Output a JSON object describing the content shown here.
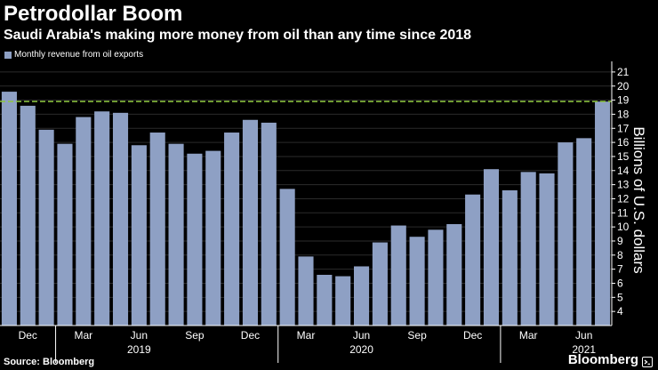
{
  "chart_data": {
    "type": "bar",
    "title": "Petrodollar Boom",
    "subtitle": "Saudi Arabia's making more money from oil than any time since 2018",
    "series": [
      {
        "name": "Monthly revenue from oil exports",
        "values": [
          19.6,
          18.6,
          16.9,
          15.9,
          17.8,
          18.2,
          18.1,
          15.8,
          16.7,
          15.9,
          15.2,
          15.4,
          16.7,
          17.6,
          17.4,
          12.7,
          7.9,
          6.6,
          6.5,
          7.2,
          8.9,
          10.1,
          9.3,
          9.8,
          10.2,
          12.3,
          14.1,
          12.6,
          13.9,
          13.8,
          16.0,
          16.3,
          18.9
        ]
      }
    ],
    "reference_line": 18.9,
    "x_tick_labels": [
      {
        "index": 1,
        "label": "Dec"
      },
      {
        "index": 4,
        "label": "Mar"
      },
      {
        "index": 7,
        "label": "Jun"
      },
      {
        "index": 10,
        "label": "Sep"
      },
      {
        "index": 13,
        "label": "Dec"
      },
      {
        "index": 16,
        "label": "Mar"
      },
      {
        "index": 19,
        "label": "Jun"
      },
      {
        "index": 22,
        "label": "Sep"
      },
      {
        "index": 25,
        "label": "Dec"
      },
      {
        "index": 28,
        "label": "Mar"
      },
      {
        "index": 31,
        "label": "Jun"
      }
    ],
    "year_labels": [
      {
        "index": 7,
        "label": "2019"
      },
      {
        "index": 19,
        "label": "2020"
      },
      {
        "index": 31,
        "label": "2021"
      }
    ],
    "year_dividers": [
      2.5,
      14.5,
      26.5
    ],
    "ylabel": "Billions of U.S. dollars",
    "ylim": [
      3,
      21.5
    ],
    "yticks": [
      4,
      5,
      6,
      7,
      8,
      9,
      10,
      11,
      12,
      13,
      14,
      15,
      16,
      17,
      18,
      19,
      20,
      21
    ],
    "grid": true,
    "colors": {
      "background": "#000000",
      "bar": "#8ea0c4",
      "grid": "#2b2b2b",
      "reference_line": "#8dc63f",
      "axis": "#ffffff",
      "text": "#ffffff"
    }
  },
  "source": "Source: Bloomberg",
  "brand": "Bloomberg"
}
